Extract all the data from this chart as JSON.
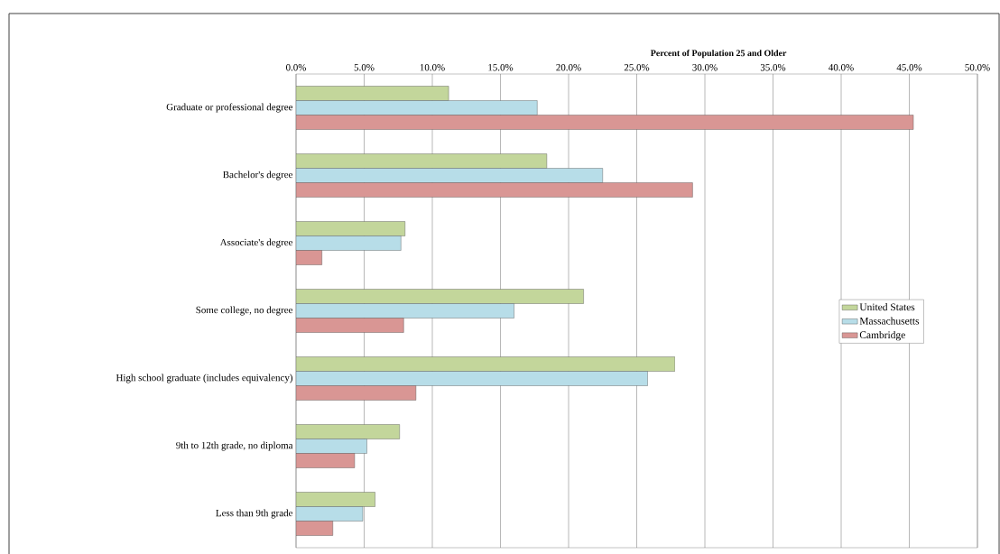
{
  "chart_data": {
    "type": "bar",
    "orientation": "horizontal",
    "xlabel": "Percent of Population 25 and Older",
    "categories": [
      "Graduate or professional degree",
      "Bachelor's degree",
      "Associate's degree",
      "Some college, no degree",
      "High school graduate (includes equivalency)",
      "9th to 12th grade, no diploma",
      "Less than 9th grade"
    ],
    "series": [
      {
        "name": "United States",
        "color": "#c3d69b",
        "values": [
          11.2,
          18.4,
          8.0,
          21.1,
          27.8,
          7.6,
          5.8
        ]
      },
      {
        "name": "Massachusetts",
        "color": "#b7dde8",
        "values": [
          17.7,
          22.5,
          7.7,
          16.0,
          25.8,
          5.2,
          4.9
        ]
      },
      {
        "name": "Cambridge",
        "color": "#d99694",
        "values": [
          45.3,
          29.1,
          1.9,
          7.9,
          8.8,
          4.3,
          2.7
        ]
      }
    ],
    "xlim": [
      0,
      50
    ],
    "xticks": [
      {
        "value": 0,
        "label": "0.0%"
      },
      {
        "value": 5,
        "label": "5.0%"
      },
      {
        "value": 10,
        "label": "10.0%"
      },
      {
        "value": 15,
        "label": "15.0%"
      },
      {
        "value": 20,
        "label": "20.0%"
      },
      {
        "value": 25,
        "label": "25.0%"
      },
      {
        "value": 30,
        "label": "30.0%"
      },
      {
        "value": 35,
        "label": "35.0%"
      },
      {
        "value": 40,
        "label": "40.0%"
      },
      {
        "value": 45,
        "label": "45.0%"
      },
      {
        "value": 50,
        "label": "50.0%"
      }
    ],
    "grid": "x",
    "legend": "right"
  }
}
